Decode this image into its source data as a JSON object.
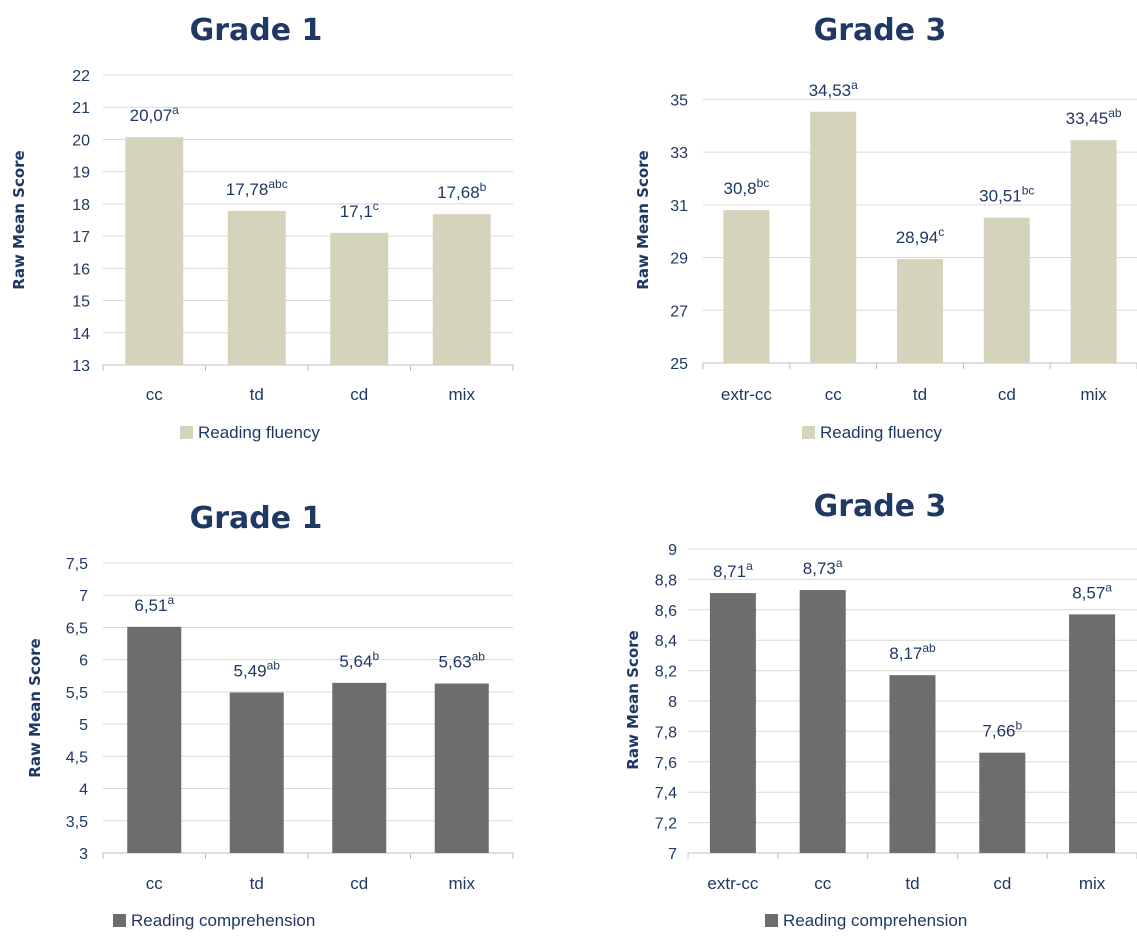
{
  "chart_data": [
    {
      "type": "bar",
      "title": "Grade 1",
      "ylabel": "Raw Mean Score",
      "categories": [
        "cc",
        "td",
        "cd",
        "mix"
      ],
      "series": [
        {
          "name": "Reading fluency",
          "values": [
            20.07,
            17.78,
            17.1,
            17.68
          ],
          "color": "#d5d3bb"
        }
      ],
      "data_labels": [
        {
          "value": "20,07",
          "sup": "a"
        },
        {
          "value": "17,78",
          "sup": "abc"
        },
        {
          "value": "17,1",
          "sup": "c"
        },
        {
          "value": "17,68",
          "sup": "b"
        }
      ],
      "ylim": [
        13,
        22
      ],
      "yticks": [
        13,
        14,
        15,
        16,
        17,
        18,
        19,
        20,
        21,
        22
      ],
      "ytick_labels": [
        "13",
        "14",
        "15",
        "16",
        "17",
        "18",
        "19",
        "20",
        "21",
        "22"
      ],
      "grid": true,
      "legend": "bottom-left"
    },
    {
      "type": "bar",
      "title": "Grade 3",
      "ylabel": "Raw Mean Score",
      "categories": [
        "extr-cc",
        "cc",
        "td",
        "cd",
        "mix"
      ],
      "series": [
        {
          "name": "Reading fluency",
          "values": [
            30.8,
            34.53,
            28.94,
            30.51,
            33.45
          ],
          "color": "#d5d3bb"
        }
      ],
      "data_labels": [
        {
          "value": "30,8",
          "sup": "bc"
        },
        {
          "value": "34,53",
          "sup": "a"
        },
        {
          "value": "28,94",
          "sup": "c"
        },
        {
          "value": "30,51",
          "sup": "bc"
        },
        {
          "value": "33,45",
          "sup": "ab"
        }
      ],
      "ylim": [
        25,
        36
      ],
      "yticks": [
        25,
        27,
        29,
        31,
        33,
        35
      ],
      "ytick_labels": [
        "25",
        "27",
        "29",
        "31",
        "33",
        "35"
      ],
      "grid": true,
      "legend": "bottom-left"
    },
    {
      "type": "bar",
      "title": "Grade 1",
      "ylabel": "Raw Mean Score",
      "categories": [
        "cc",
        "td",
        "cd",
        "mix"
      ],
      "series": [
        {
          "name": "Reading comprehension",
          "values": [
            6.51,
            5.49,
            5.64,
            5.63
          ],
          "color": "#6d6d6d"
        }
      ],
      "data_labels": [
        {
          "value": "6,51",
          "sup": "a"
        },
        {
          "value": "5,49",
          "sup": "ab"
        },
        {
          "value": "5,64",
          "sup": "b"
        },
        {
          "value": "5,63",
          "sup": "ab"
        }
      ],
      "ylim": [
        3,
        7.5
      ],
      "yticks": [
        3,
        3.5,
        4,
        4.5,
        5,
        5.5,
        6,
        6.5,
        7,
        7.5
      ],
      "ytick_labels": [
        "3",
        "3,5",
        "4",
        "4,5",
        "5",
        "5,5",
        "6",
        "6,5",
        "7",
        "7,5"
      ],
      "grid": true,
      "legend": "bottom-left"
    },
    {
      "type": "bar",
      "title": "Grade 3",
      "ylabel": "Raw Mean Score",
      "categories": [
        "extr-cc",
        "cc",
        "td",
        "cd",
        "mix"
      ],
      "series": [
        {
          "name": "Reading comprehension",
          "values": [
            8.71,
            8.73,
            8.17,
            7.66,
            8.57
          ],
          "color": "#6d6d6d"
        }
      ],
      "data_labels": [
        {
          "value": "8,71",
          "sup": "a"
        },
        {
          "value": "8,73",
          "sup": "a"
        },
        {
          "value": "8,17",
          "sup": "ab"
        },
        {
          "value": "7,66",
          "sup": "b"
        },
        {
          "value": "8,57",
          "sup": "a"
        }
      ],
      "ylim": [
        7,
        9
      ],
      "yticks": [
        7,
        7.2,
        7.4,
        7.6,
        7.8,
        8,
        8.2,
        8.4,
        8.6,
        8.8,
        9
      ],
      "ytick_labels": [
        "7",
        "7,2",
        "7,4",
        "7,6",
        "7,8",
        "8",
        "8,2",
        "8,4",
        "8,6",
        "8,8",
        "9"
      ],
      "grid": true,
      "legend": "bottom-left"
    }
  ]
}
